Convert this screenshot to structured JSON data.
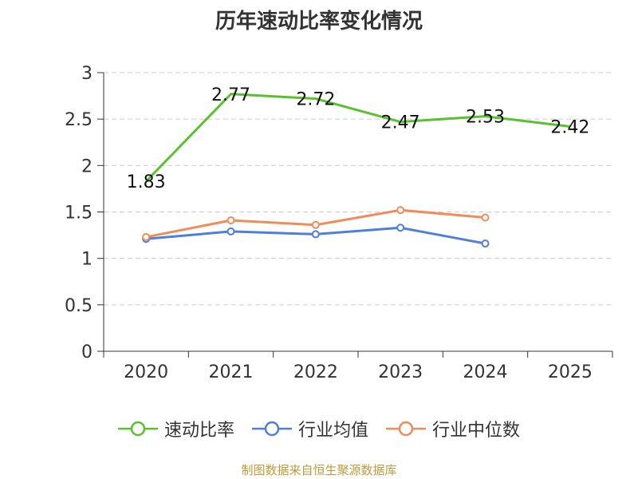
{
  "chart_data": {
    "type": "line",
    "title": "历年速动比率变化情况",
    "categories": [
      "2020",
      "2021",
      "2022",
      "2023",
      "2024",
      "2025"
    ],
    "ylim": [
      0,
      3
    ],
    "yticks": [
      "0",
      "0.5",
      "1",
      "1.5",
      "2",
      "2.5",
      "3"
    ],
    "ytick_values": [
      0,
      0.5,
      1,
      1.5,
      2,
      2.5,
      3
    ],
    "grid": true,
    "legend_position": "bottom",
    "series": [
      {
        "name": "速动比率",
        "color": "#5ac12e",
        "values": [
          1.83,
          2.77,
          2.72,
          2.47,
          2.53,
          2.42
        ],
        "labels": [
          "1.83",
          "2.77",
          "2.72",
          "2.47",
          "2.53",
          "2.42"
        ],
        "show_markers": false
      },
      {
        "name": "行业均值",
        "color": "#4e7fdb",
        "values": [
          1.21,
          1.29,
          1.26,
          1.33,
          1.16,
          null
        ],
        "show_markers": true
      },
      {
        "name": "行业中位数",
        "color": "#f08c5a",
        "values": [
          1.23,
          1.41,
          1.36,
          1.52,
          1.44,
          null
        ],
        "show_markers": true
      }
    ]
  },
  "source": "制图数据来自恒生聚源数据库"
}
